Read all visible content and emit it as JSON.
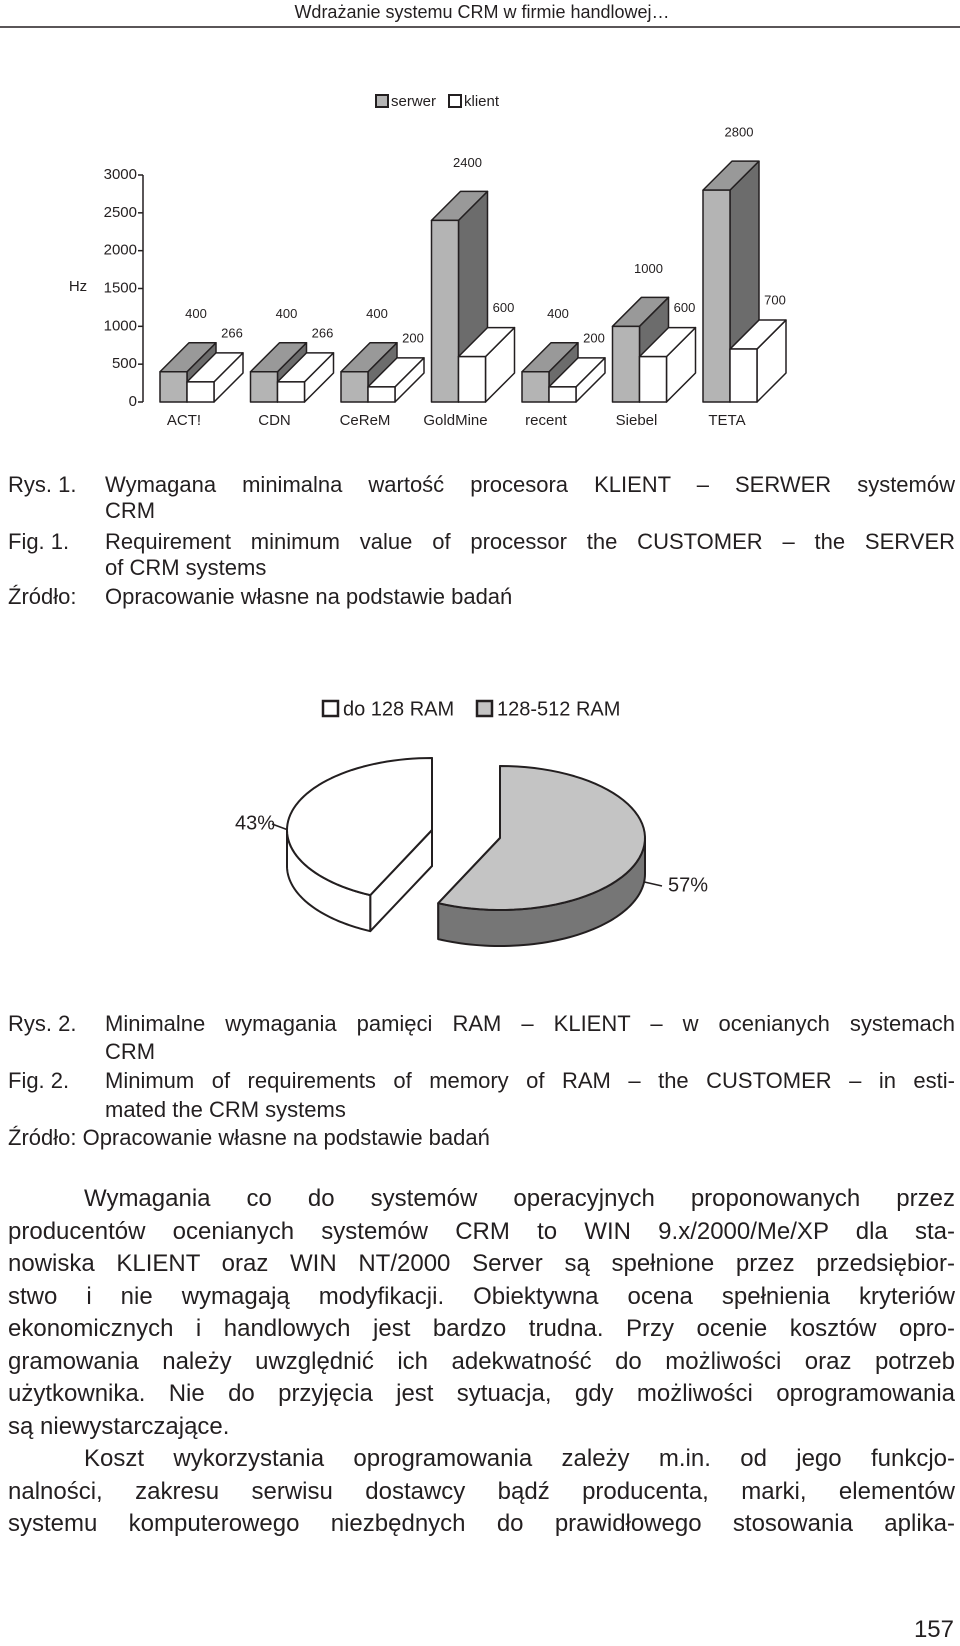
{
  "header": "Wdrażanie systemu CRM w firmie handlowej…",
  "chart_data": [
    {
      "type": "bar",
      "y_label": "Hz",
      "categories": [
        "ACT!",
        "CDN",
        "CeReM",
        "GoldMine",
        "recent",
        "Siebel",
        "TETA"
      ],
      "series": [
        {
          "name": "serwer",
          "color": "#b4b4b4",
          "values": [
            400,
            400,
            400,
            2400,
            400,
            1000,
            2800
          ]
        },
        {
          "name": "klient",
          "color": "#ffffff",
          "values": [
            266,
            266,
            200,
            600,
            200,
            600,
            700
          ]
        }
      ],
      "ylim": [
        0,
        3000
      ],
      "yticks": [
        0,
        500,
        1000,
        1500,
        2000,
        2500,
        3000
      ]
    },
    {
      "type": "pie",
      "categories": [
        "do 128 RAM",
        "128-512 RAM"
      ],
      "values": [
        43,
        57
      ],
      "value_labels": [
        "43%",
        "57%"
      ],
      "colors": [
        "#ffffff",
        "#c4c4c4"
      ]
    }
  ],
  "caption_1": {
    "rows": [
      {
        "label": "Rys. 1.",
        "lines": [
          "Wymagana minimalna wartość procesora KLIENT – SERWER systemów",
          "CRM"
        ]
      },
      {
        "label": "Fig. 1.",
        "lines": [
          "Requirement minimum value of processor the CUSTOMER – the SERVER",
          "of CRM systems"
        ]
      },
      {
        "label": "Źródło:",
        "lines": [
          "Opracowanie własne na podstawie badań"
        ]
      }
    ]
  },
  "caption_2": {
    "rows": [
      {
        "label": "Rys. 2.",
        "lines": [
          "Minimalne wymagania pamięci RAM – KLIENT – w ocenianych systemach",
          "CRM"
        ]
      },
      {
        "label": "Fig. 2.",
        "lines": [
          "Minimum of requirements of memory of RAM – the CUSTOMER – in esti-",
          "mated the CRM systems"
        ]
      }
    ],
    "source": "Źródło: Opracowanie własne na podstawie badań"
  },
  "body": [
    [
      "Wymagania co do systemów operacyjnych proponowanych przez",
      "producentów ocenianych systemów CRM to WIN 9.x/2000/Me/XP dla sta-",
      "nowiska KLIENT oraz WIN NT/2000 Server są spełnione przez przedsiębior-",
      "stwo i nie wymagają modyfikacji. Obiektywna ocena spełnienia kryteriów",
      "ekonomicznych i handlowych jest bardzo trudna. Przy ocenie kosztów opro-",
      "gramowania należy uwzględnić ich adekwatność do możliwości oraz potrzeb",
      "użytkownika. Nie do przyjęcia jest sytuacja, gdy możliwości oprogramowania",
      "są niewystarczające."
    ],
    [
      "Koszt wykorzystania oprogramowania zależy m.in. od jego funkcjo-",
      "nalności, zakresu serwisu dostawcy bądź producenta, marki, elementów",
      "systemu komputerowego niezbędnych do prawidłowego stosowania aplika-"
    ]
  ],
  "page_number": "157"
}
